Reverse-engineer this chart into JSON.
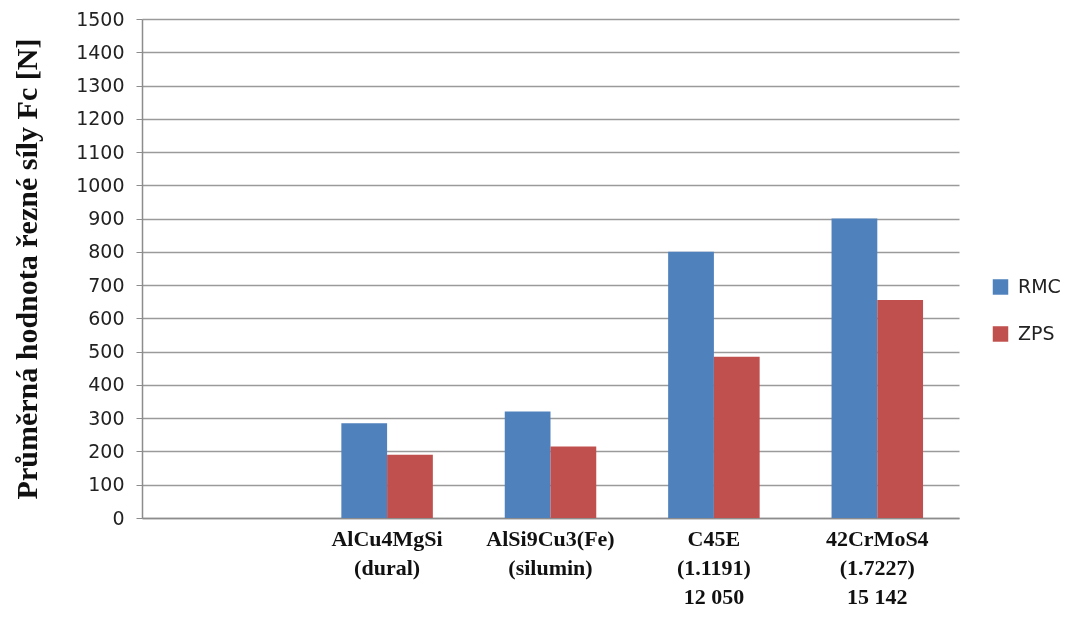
{
  "chart_data": {
    "type": "bar",
    "ylabel": "Průměrná hodnota řezné síly Fc [N]",
    "categories": [
      null,
      "AlCu4MgSi\n(dural)",
      "AlSi9Cu3(Fe)\n(silumin)",
      "C45E\n(1.1191)\n12 050",
      "42CrMoS4\n(1.7227)\n15 142"
    ],
    "series": [
      {
        "name": "RMC",
        "color": "#4f81bd",
        "values": [
          null,
          285,
          320,
          800,
          900
        ]
      },
      {
        "name": "ZPS",
        "color": "#c0504d",
        "values": [
          null,
          190,
          215,
          485,
          655
        ]
      }
    ],
    "ylim": [
      0,
      1500
    ],
    "yticks": [
      0,
      100,
      200,
      300,
      400,
      500,
      600,
      700,
      800,
      900,
      1000,
      1100,
      1200,
      1300,
      1400,
      1500
    ],
    "grid": "y",
    "legend": "right"
  }
}
